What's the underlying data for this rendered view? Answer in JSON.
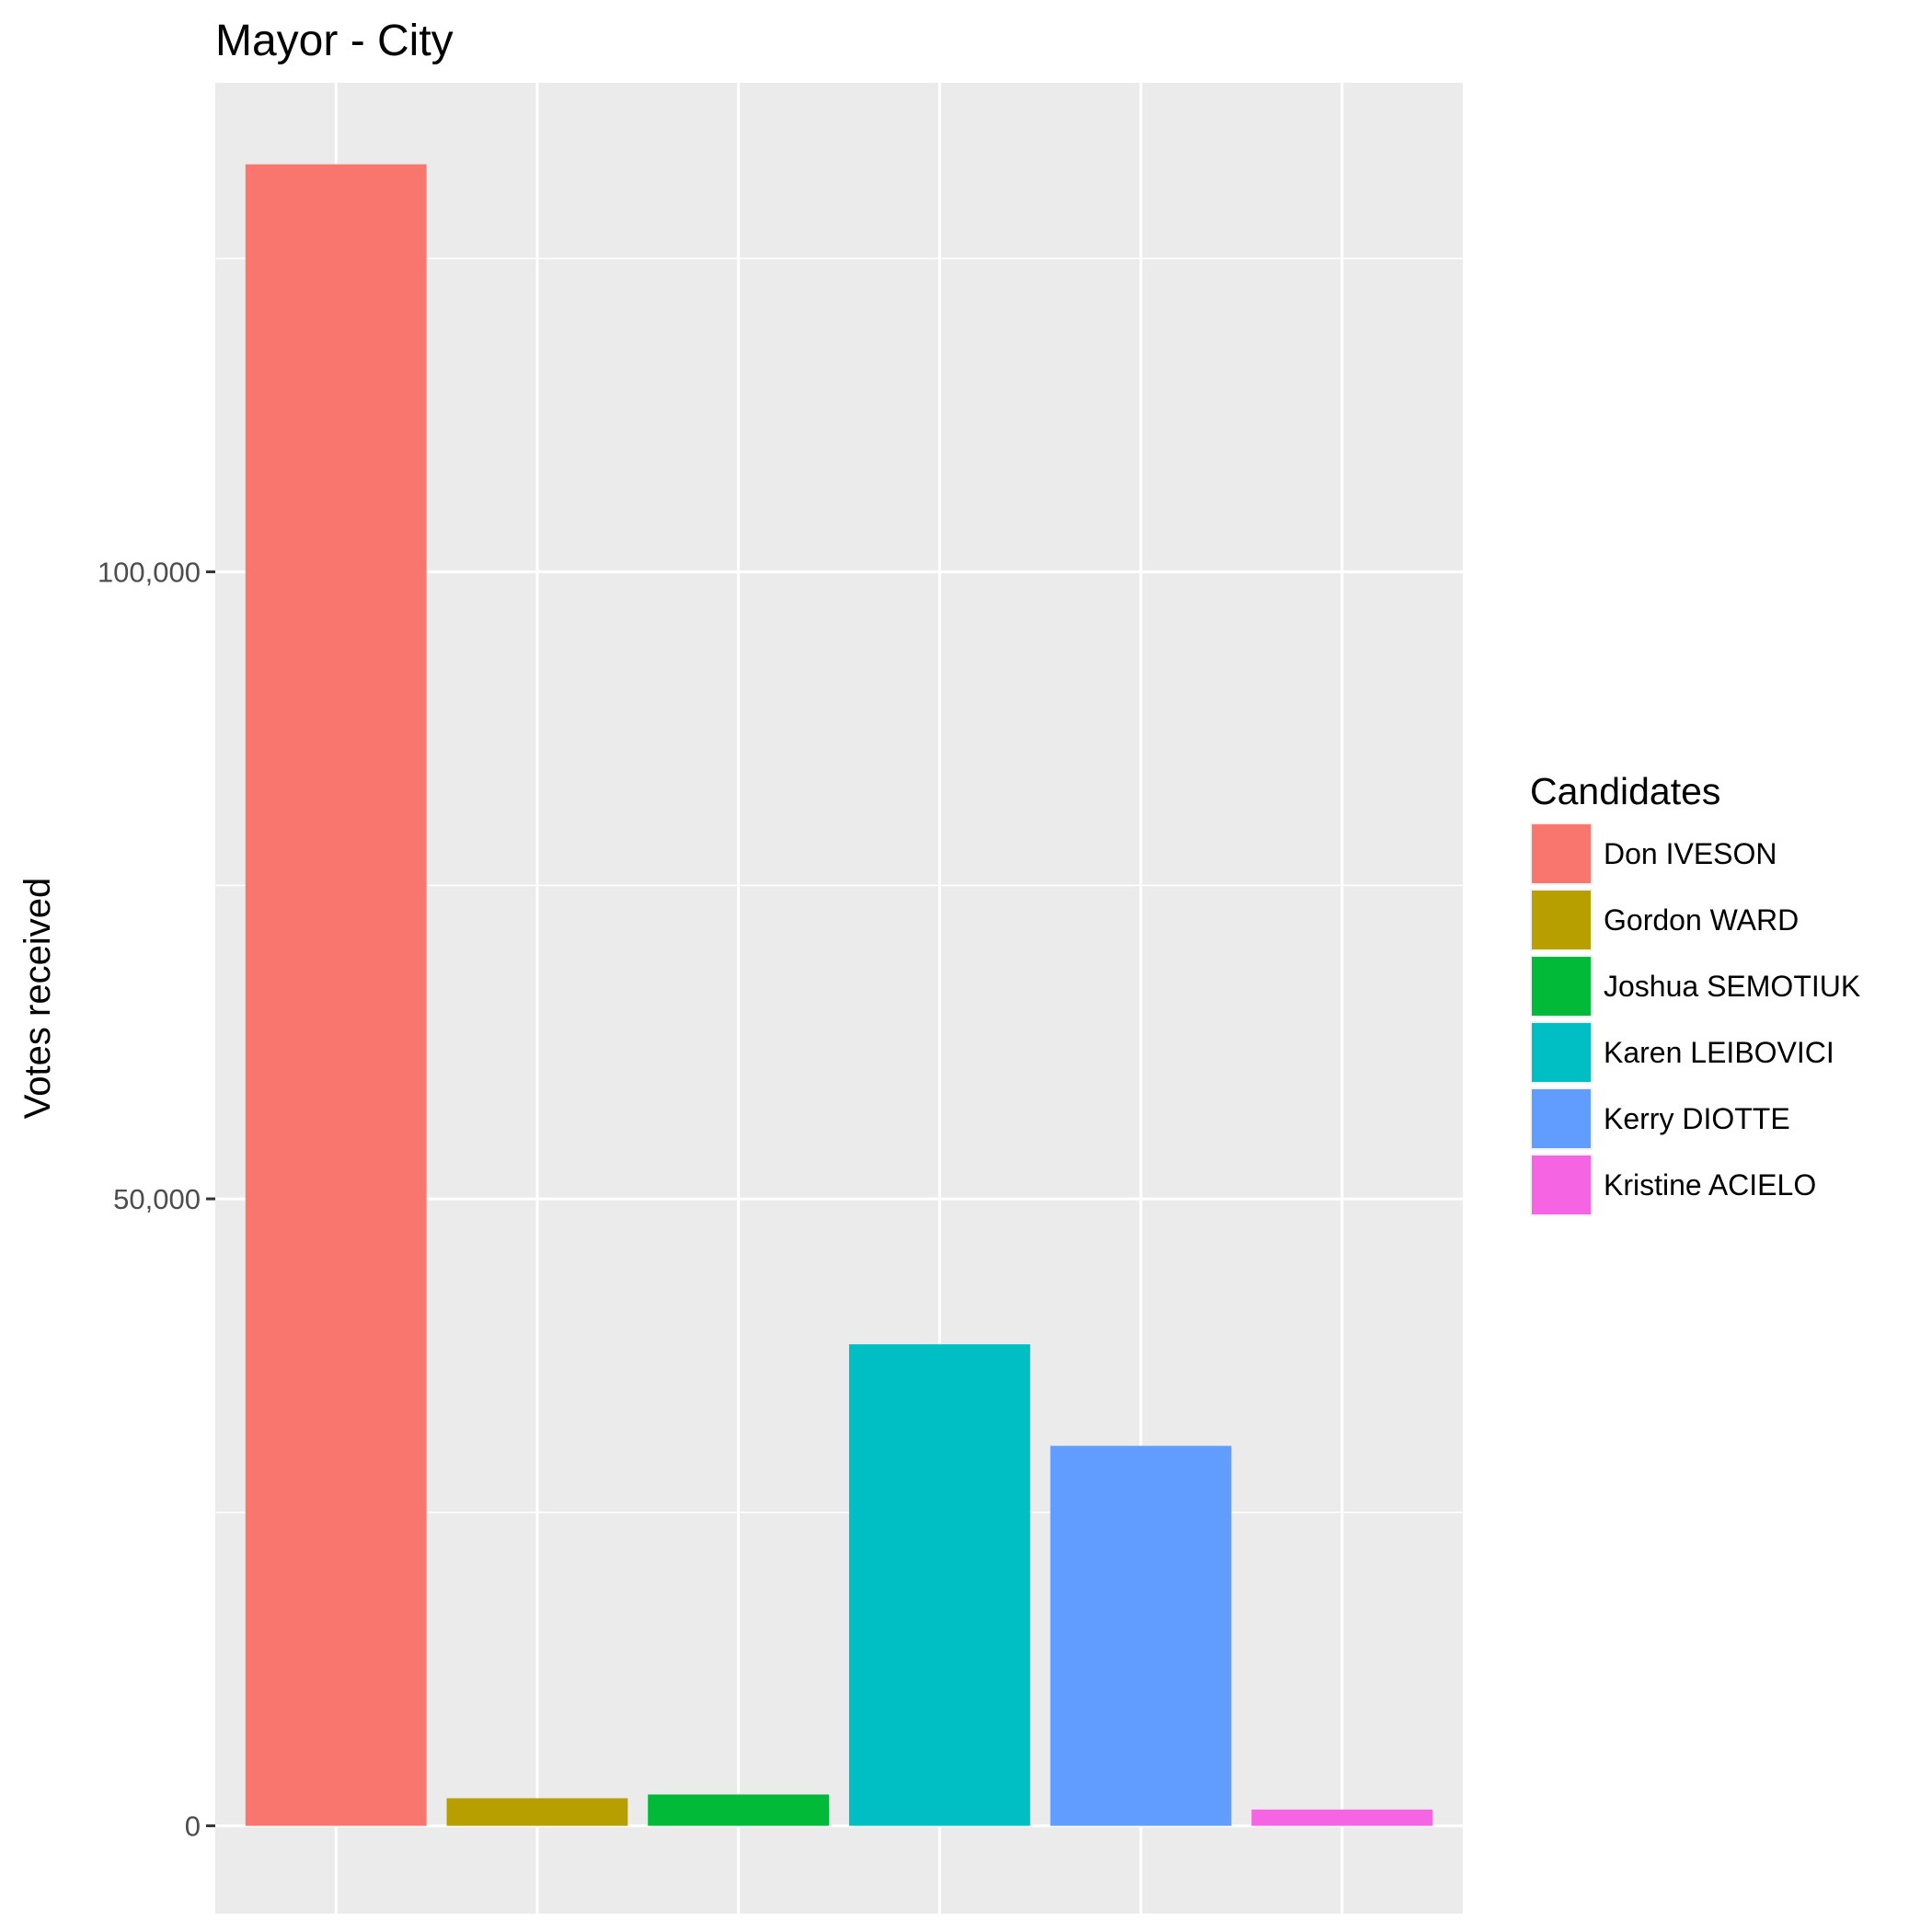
{
  "chart_data": {
    "type": "bar",
    "title": "Mayor - City",
    "xlabel": "",
    "ylabel": "Votes received",
    "categories": [
      "Don IVESON",
      "Gordon WARD",
      "Joshua SEMOTIUK",
      "Karen LEIBOVICI",
      "Kerry DIOTTE",
      "Kristine ACIELO"
    ],
    "values": [
      132500,
      2200,
      2500,
      38400,
      30300,
      1300
    ],
    "colors": [
      "#F8766D",
      "#B79F00",
      "#00BA38",
      "#00BFC4",
      "#619CFF",
      "#F564E3"
    ],
    "yticks": [
      0,
      50000,
      100000
    ],
    "ytick_labels": [
      "0",
      "50,000",
      "100,000"
    ],
    "ylim": [
      -7000,
      139000
    ],
    "grid": true,
    "legend": {
      "title": "Candidates",
      "position": "right"
    }
  }
}
